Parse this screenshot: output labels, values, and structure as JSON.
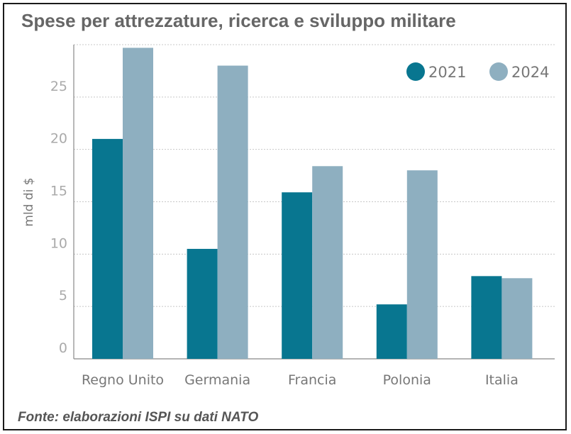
{
  "title": "Spese per attrezzature, ricerca e sviluppo militare",
  "source": "Fonte: elaborazioni ISPI su dati NATO",
  "colors": {
    "s2021": "#087690",
    "s2024": "#8eafc0",
    "grid": "#c8c8c8",
    "axis": "#888888"
  },
  "chart_data": {
    "type": "bar",
    "categories": [
      "Regno Unito",
      "Germania",
      "Francia",
      "Polonia",
      "Italia"
    ],
    "series": [
      {
        "name": "2021",
        "values": [
          21.0,
          10.5,
          15.9,
          5.2,
          7.9
        ]
      },
      {
        "name": "2024",
        "values": [
          29.7,
          28.0,
          18.4,
          18.0,
          7.7
        ]
      }
    ],
    "ylabel": "mld di $",
    "ylim": [
      0,
      30
    ],
    "yticks": [
      0,
      5,
      10,
      15,
      20,
      25
    ],
    "grid": true,
    "legend_position": "top-right"
  }
}
